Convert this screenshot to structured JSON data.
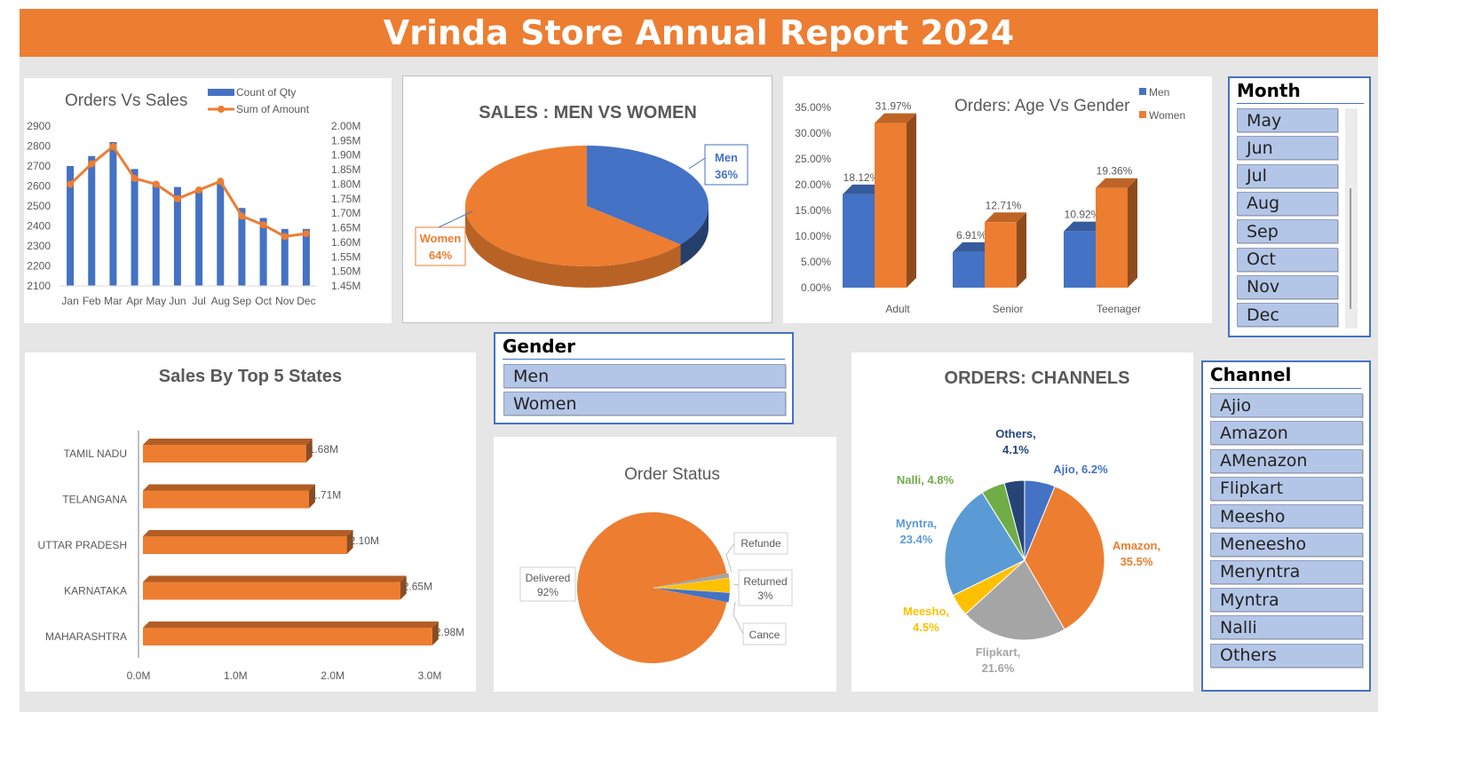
{
  "title": "Vrinda Store Annual Report 2024",
  "colors": {
    "orange": "#ed7d31",
    "blue": "#4472c4",
    "gray": "#a5a5a5",
    "yellow": "#ffc000",
    "lightblue": "#5b9bd5",
    "green": "#70ad47",
    "navy": "#264478"
  },
  "slicers": {
    "month": {
      "title": "Month",
      "items": [
        "May",
        "Jun",
        "Jul",
        "Aug",
        "Sep",
        "Oct",
        "Nov",
        "Dec"
      ]
    },
    "gender": {
      "title": "Gender",
      "items": [
        "Men",
        "Women"
      ]
    },
    "channel": {
      "title": "Channel",
      "items": [
        "Ajio",
        "Amazon",
        "AMenazon",
        "Flipkart",
        "Meesho",
        "Meneesho",
        "Menyntra",
        "Myntra",
        "Nalli",
        "Others"
      ]
    }
  },
  "chart_data": [
    {
      "type": "bar",
      "title": "Orders Vs Sales",
      "categories": [
        "Jan",
        "Feb",
        "Mar",
        "Apr",
        "May",
        "Jun",
        "Jul",
        "Aug",
        "Sep",
        "Oct",
        "Nov",
        "Dec"
      ],
      "series": [
        {
          "name": "Count of Qty",
          "type": "bar",
          "axis": "left",
          "values": [
            2700,
            2750,
            2820,
            2685,
            2615,
            2595,
            2580,
            2620,
            2490,
            2440,
            2385,
            2385
          ]
        },
        {
          "name": "Sum of Amount",
          "type": "line",
          "axis": "right",
          "values": [
            1.8,
            1.87,
            1.93,
            1.82,
            1.8,
            1.75,
            1.78,
            1.81,
            1.69,
            1.66,
            1.62,
            1.63
          ]
        }
      ],
      "ylim": [
        2100,
        2900
      ],
      "yticks": [
        2100,
        2200,
        2300,
        2400,
        2500,
        2600,
        2700,
        2800,
        2900
      ],
      "y2lim": [
        1.45,
        2.0
      ],
      "y2ticks": [
        "1.45M",
        "1.50M",
        "1.55M",
        "1.60M",
        "1.65M",
        "1.70M",
        "1.75M",
        "1.80M",
        "1.85M",
        "1.90M",
        "1.95M",
        "2.00M"
      ],
      "legend": "top-right"
    },
    {
      "type": "pie",
      "title": "SALES : MEN VS WOMEN",
      "slices": [
        {
          "label": "Men",
          "value": 36,
          "text": "36%"
        },
        {
          "label": "Women",
          "value": 64,
          "text": "64%"
        }
      ]
    },
    {
      "type": "bar",
      "title": "Orders: Age Vs Gender",
      "categories": [
        "Adult",
        "Senior",
        "Teenager"
      ],
      "series": [
        {
          "name": "Men",
          "values": [
            18.12,
            6.91,
            10.92
          ],
          "labels": [
            "18.12%",
            "6.91%",
            "10.92%"
          ]
        },
        {
          "name": "Women",
          "values": [
            31.97,
            12.71,
            19.36
          ],
          "labels": [
            "31.97%",
            "12.71%",
            "19.36%"
          ]
        }
      ],
      "ylim": [
        0,
        35
      ],
      "yticks": [
        "0.00%",
        "5.00%",
        "10.00%",
        "15.00%",
        "20.00%",
        "25.00%",
        "30.00%",
        "35.00%"
      ],
      "legend": "top-right"
    },
    {
      "type": "bar",
      "orientation": "horizontal",
      "title": "Sales By Top 5 States",
      "categories": [
        "TAMIL NADU",
        "TELANGANA",
        "UTTAR PRADESH",
        "KARNATAKA",
        "MAHARASHTRA"
      ],
      "values": [
        1.68,
        1.71,
        2.1,
        2.65,
        2.98
      ],
      "labels": [
        "1.68M",
        "1.71M",
        "2.10M",
        "2.65M",
        "2.98M"
      ],
      "xlim": [
        0,
        3.0
      ],
      "xticks": [
        "0.0M",
        "1.0M",
        "2.0M",
        "3.0M"
      ]
    },
    {
      "type": "pie",
      "title": "Order Status",
      "slices": [
        {
          "label": "Delivered",
          "value": 92,
          "text": "92%"
        },
        {
          "label": "Refunde",
          "value": 1,
          "text": ""
        },
        {
          "label": "Returned",
          "value": 3,
          "text": "3%"
        },
        {
          "label": "Cance",
          "value": 2,
          "text": ""
        }
      ]
    },
    {
      "type": "pie",
      "title": "ORDERS: CHANNELS",
      "slices": [
        {
          "label": "Ajio",
          "value": 6.2,
          "text": "Ajio, 6.2%"
        },
        {
          "label": "Amazon",
          "value": 35.5,
          "text": "35.5%"
        },
        {
          "label": "Flipkart",
          "value": 21.6,
          "text": "21.6%"
        },
        {
          "label": "Meesho",
          "value": 4.5,
          "text": "4.5%"
        },
        {
          "label": "Myntra",
          "value": 23.4,
          "text": "23.4%"
        },
        {
          "label": "Nalli",
          "value": 4.8,
          "text": "Nalli, 4.8%"
        },
        {
          "label": "Others",
          "value": 4.1,
          "text": "4.1%"
        }
      ],
      "label_names": {
        "Amazon": "Amazon,",
        "Flipkart": "Flipkart,",
        "Meesho": "Meesho,",
        "Myntra": "Myntra,",
        "Others": "Others,"
      }
    }
  ]
}
